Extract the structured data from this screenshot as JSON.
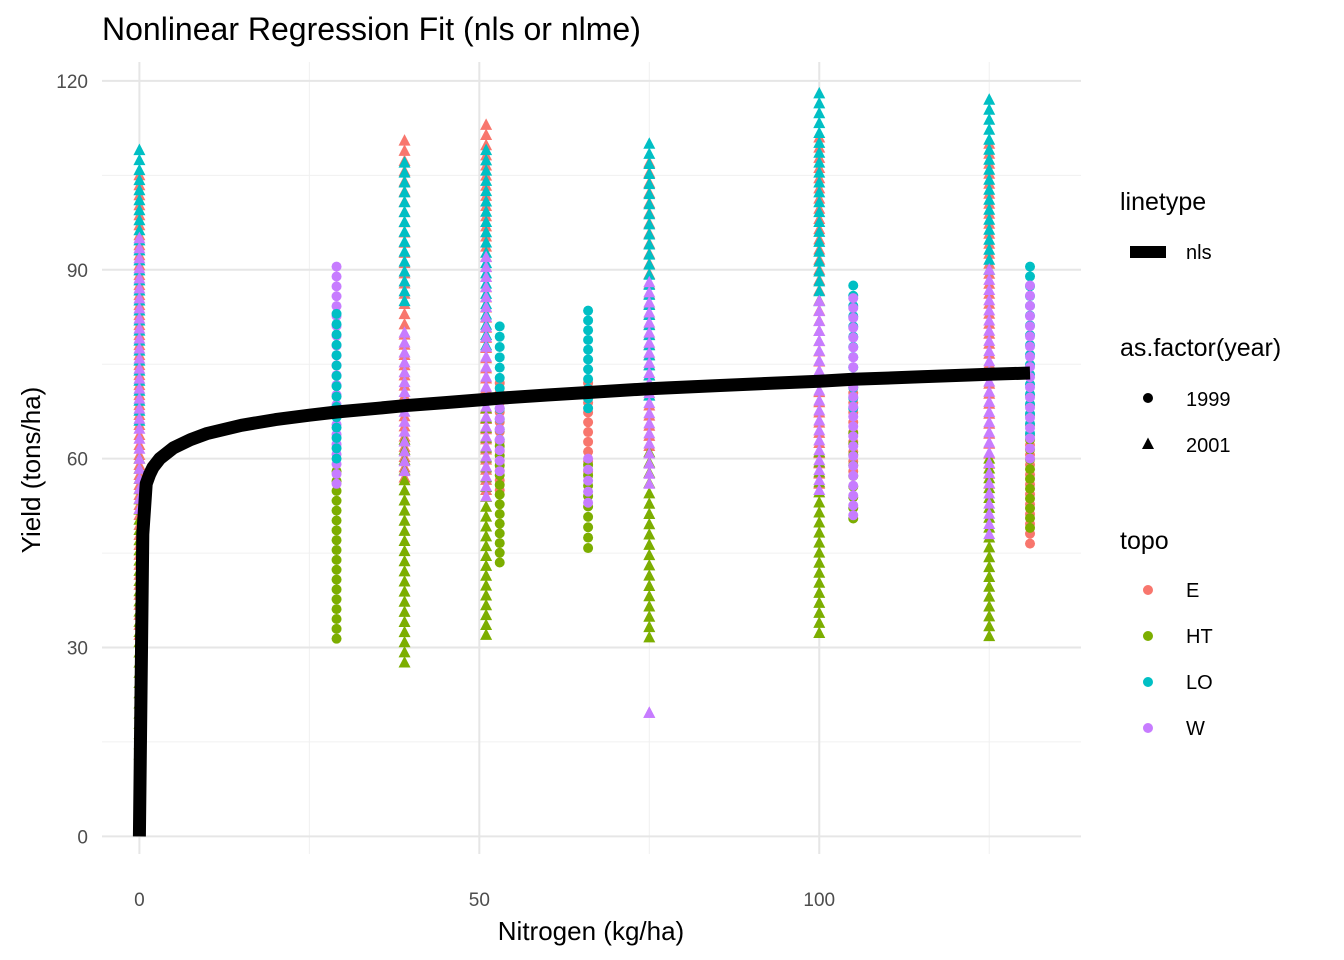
{
  "chart_data": {
    "type": "scatter",
    "title": "Nonlinear Regression Fit (nls or nlme)",
    "xlabel": "Nitrogen (kg/ha)",
    "ylabel": "Yield (tons/ha)",
    "xlim": [
      -5.5,
      138.5
    ],
    "ylim": [
      -2.8,
      123
    ],
    "x_ticks": [
      0,
      50,
      100
    ],
    "y_ticks": [
      0,
      30,
      60,
      90,
      120
    ],
    "grid": true,
    "legend_position": "right",
    "legends": [
      {
        "title": "linetype",
        "entries": [
          {
            "label": "nls",
            "kind": "line"
          }
        ]
      },
      {
        "title": "as.factor(year)",
        "entries": [
          {
            "label": "1999",
            "kind": "circle"
          },
          {
            "label": "2001",
            "kind": "triangle"
          }
        ]
      },
      {
        "title": "topo",
        "entries": [
          {
            "label": "E",
            "color": "#F8766D"
          },
          {
            "label": "HT",
            "color": "#7CAE00"
          },
          {
            "label": "LO",
            "color": "#00BFC4"
          },
          {
            "label": "W",
            "color": "#C77CFF"
          }
        ]
      }
    ],
    "series_colors": {
      "E": "#F8766D",
      "HT": "#7CAE00",
      "LO": "#00BFC4",
      "W": "#C77CFF"
    },
    "fit_curve": {
      "name": "nls",
      "x": [
        0,
        0.5,
        1,
        1.5,
        2,
        3,
        5,
        7.5,
        10,
        15,
        20,
        25,
        29,
        35,
        39,
        45,
        51,
        53,
        60,
        66,
        75,
        85,
        100,
        105,
        115,
        125,
        131
      ],
      "y": [
        0,
        48,
        56,
        57.5,
        58.6,
        60,
        61.7,
        63,
        64,
        65.3,
        66.2,
        66.9,
        67.4,
        68,
        68.4,
        68.9,
        69.4,
        69.6,
        70.1,
        70.5,
        71.1,
        71.6,
        72.3,
        72.6,
        73,
        73.4,
        73.6
      ]
    },
    "point_groups": [
      {
        "x": 0,
        "year": "2001",
        "topo": "E",
        "ymin": 32,
        "ymax": 105
      },
      {
        "x": 0,
        "year": "2001",
        "topo": "HT",
        "ymin": 13,
        "ymax": 60
      },
      {
        "x": 0,
        "year": "2001",
        "topo": "LO",
        "ymin": 66,
        "ymax": 109
      },
      {
        "x": 0,
        "year": "2001",
        "topo": "W",
        "ymin": 52,
        "ymax": 95
      },
      {
        "x": 29,
        "year": "1999",
        "topo": "HT",
        "ymin": 31.4,
        "ymax": 58
      },
      {
        "x": 29,
        "year": "1999",
        "topo": "W",
        "ymin": 56,
        "ymax": 90.5
      },
      {
        "x": 29,
        "year": "1999",
        "topo": "LO",
        "ymin": 60,
        "ymax": 83
      },
      {
        "x": 39,
        "year": "2001",
        "topo": "E",
        "ymin": 57,
        "ymax": 110.5
      },
      {
        "x": 39,
        "year": "2001",
        "topo": "HT",
        "ymin": 27.6,
        "ymax": 63
      },
      {
        "x": 39,
        "year": "2001",
        "topo": "LO",
        "ymin": 85,
        "ymax": 107
      },
      {
        "x": 39,
        "year": "2001",
        "topo": "W",
        "ymin": 58,
        "ymax": 80
      },
      {
        "x": 51,
        "year": "2001",
        "topo": "E",
        "ymin": 55,
        "ymax": 113
      },
      {
        "x": 51,
        "year": "2001",
        "topo": "HT",
        "ymin": 32,
        "ymax": 68
      },
      {
        "x": 51,
        "year": "2001",
        "topo": "LO",
        "ymin": 78,
        "ymax": 109
      },
      {
        "x": 51,
        "year": "2001",
        "topo": "W",
        "ymin": 54,
        "ymax": 92
      },
      {
        "x": 53,
        "year": "1999",
        "topo": "E",
        "ymin": 55,
        "ymax": 72
      },
      {
        "x": 53,
        "year": "1999",
        "topo": "HT",
        "ymin": 43.5,
        "ymax": 62
      },
      {
        "x": 53,
        "year": "1999",
        "topo": "LO",
        "ymin": 63,
        "ymax": 81
      },
      {
        "x": 53,
        "year": "1999",
        "topo": "W",
        "ymin": 58,
        "ymax": 68
      },
      {
        "x": 66,
        "year": "1999",
        "topo": "E",
        "ymin": 58,
        "ymax": 72
      },
      {
        "x": 66,
        "year": "1999",
        "topo": "HT",
        "ymin": 45.8,
        "ymax": 59
      },
      {
        "x": 66,
        "year": "1999",
        "topo": "LO",
        "ymin": 68,
        "ymax": 83.5
      },
      {
        "x": 66,
        "year": "1999",
        "topo": "W",
        "ymin": 53,
        "ymax": 60
      },
      {
        "x": 75,
        "year": "2001",
        "topo": "E",
        "ymin": 62,
        "ymax": 107
      },
      {
        "x": 75,
        "year": "2001",
        "topo": "HT",
        "ymin": 31.6,
        "ymax": 61
      },
      {
        "x": 75,
        "year": "2001",
        "topo": "LO",
        "ymin": 70,
        "ymax": 110
      },
      {
        "x": 75,
        "year": "2001",
        "topo": "W",
        "ymin": 19.6,
        "ymax": 19.6
      },
      {
        "x": 75,
        "year": "2001",
        "topo": "W",
        "ymin": 56,
        "ymax": 88
      },
      {
        "x": 100,
        "year": "2001",
        "topo": "E",
        "ymin": 56,
        "ymax": 111
      },
      {
        "x": 100,
        "year": "2001",
        "topo": "HT",
        "ymin": 32.3,
        "ymax": 61
      },
      {
        "x": 100,
        "year": "2001",
        "topo": "LO",
        "ymin": 85,
        "ymax": 118
      },
      {
        "x": 100,
        "year": "2001",
        "topo": "W",
        "ymin": 55,
        "ymax": 85
      },
      {
        "x": 105,
        "year": "1999",
        "topo": "E",
        "ymin": 58,
        "ymax": 72
      },
      {
        "x": 105,
        "year": "1999",
        "topo": "HT",
        "ymin": 50.5,
        "ymax": 64
      },
      {
        "x": 105,
        "year": "1999",
        "topo": "LO",
        "ymin": 68,
        "ymax": 87.5
      },
      {
        "x": 105,
        "year": "1999",
        "topo": "W",
        "ymin": 51,
        "ymax": 85.5
      },
      {
        "x": 125,
        "year": "2001",
        "topo": "E",
        "ymin": 56,
        "ymax": 110
      },
      {
        "x": 125,
        "year": "2001",
        "topo": "HT",
        "ymin": 31.8,
        "ymax": 60
      },
      {
        "x": 125,
        "year": "2001",
        "topo": "LO",
        "ymin": 90,
        "ymax": 117
      },
      {
        "x": 125,
        "year": "2001",
        "topo": "W",
        "ymin": 48,
        "ymax": 90
      },
      {
        "x": 131,
        "year": "1999",
        "topo": "E",
        "ymin": 46.5,
        "ymax": 70
      },
      {
        "x": 131,
        "year": "1999",
        "topo": "HT",
        "ymin": 49,
        "ymax": 63
      },
      {
        "x": 131,
        "year": "1999",
        "topo": "LO",
        "ymin": 64,
        "ymax": 90.5
      },
      {
        "x": 131,
        "year": "1999",
        "topo": "W",
        "ymin": 60,
        "ymax": 87.5
      }
    ]
  }
}
